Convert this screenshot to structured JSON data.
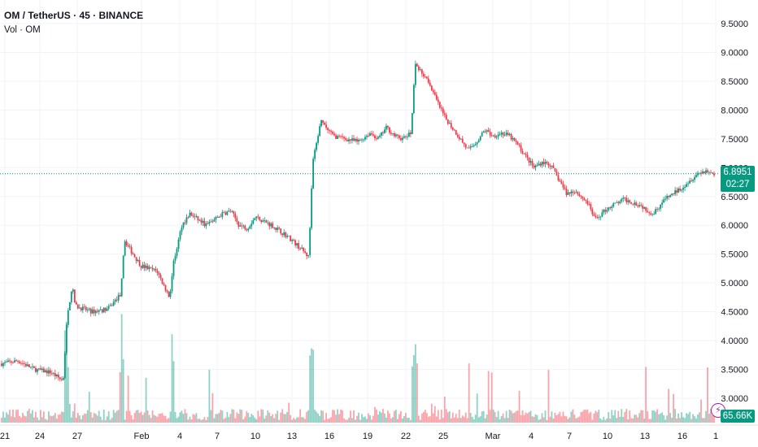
{
  "header": {
    "title": "OM / TetherUS · 45 · BINANCE",
    "volume_label": "Vol · OM"
  },
  "price_badge": {
    "price": "6.8951",
    "countdown": "02:27"
  },
  "volume_badge": {
    "value": "65.66K"
  },
  "colors": {
    "up": "#089981",
    "down": "#f23645",
    "grid": "#f0f3fa",
    "axis_text": "#131722",
    "alert_icon": "#9c27b0"
  },
  "icons": {
    "alert": "lightning-bolt-icon"
  },
  "chart_data": {
    "type": "candlestick",
    "title": "",
    "xlabel": "",
    "ylabel": "",
    "ylim": [
      2.8,
      9.6
    ],
    "grid": true,
    "current_price": 6.8951,
    "y_ticks": [
      "3.0000",
      "3.5000",
      "4.0000",
      "4.5000",
      "5.0000",
      "5.5000",
      "6.0000",
      "6.5000",
      "7.0000",
      "7.5000",
      "8.0000",
      "8.5000",
      "9.0000",
      "9.5000"
    ],
    "x_ticks": [
      "21",
      "24",
      "27",
      "Feb",
      "4",
      "7",
      "10",
      "13",
      "16",
      "19",
      "22",
      "25",
      "Mar",
      "4",
      "7",
      "10",
      "13",
      "16",
      "1"
    ],
    "price_path": [
      [
        0,
        3.6
      ],
      [
        2,
        3.65
      ],
      [
        4,
        3.5
      ],
      [
        6,
        3.45
      ],
      [
        7.5,
        3.3
      ],
      [
        8,
        4.4
      ],
      [
        8.6,
        4.95
      ],
      [
        9,
        4.6
      ],
      [
        11,
        4.5
      ],
      [
        13,
        4.55
      ],
      [
        14.5,
        4.8
      ],
      [
        15,
        5.75
      ],
      [
        15.6,
        5.6
      ],
      [
        17,
        5.3
      ],
      [
        19,
        5.2
      ],
      [
        20.5,
        4.75
      ],
      [
        21,
        5.35
      ],
      [
        22,
        6.0
      ],
      [
        23,
        6.2
      ],
      [
        25,
        6.0
      ],
      [
        27,
        6.2
      ],
      [
        28,
        6.25
      ],
      [
        29,
        6.0
      ],
      [
        30,
        5.95
      ],
      [
        31,
        6.15
      ],
      [
        33,
        6.0
      ],
      [
        35,
        5.8
      ],
      [
        36.5,
        5.6
      ],
      [
        37.5,
        5.45
      ],
      [
        38,
        7.1
      ],
      [
        39,
        7.8
      ],
      [
        40.5,
        7.55
      ],
      [
        42,
        7.5
      ],
      [
        43.5,
        7.45
      ],
      [
        45,
        7.6
      ],
      [
        46,
        7.5
      ],
      [
        47,
        7.7
      ],
      [
        48,
        7.55
      ],
      [
        49,
        7.5
      ],
      [
        50,
        7.6
      ],
      [
        50.5,
        8.85
      ],
      [
        51,
        8.7
      ],
      [
        52,
        8.55
      ],
      [
        53,
        8.2
      ],
      [
        54,
        7.9
      ],
      [
        55,
        7.7
      ],
      [
        56,
        7.5
      ],
      [
        57,
        7.3
      ],
      [
        58,
        7.45
      ],
      [
        59,
        7.65
      ],
      [
        60,
        7.55
      ],
      [
        61,
        7.6
      ],
      [
        62,
        7.55
      ],
      [
        63,
        7.4
      ],
      [
        64,
        7.2
      ],
      [
        65,
        7.0
      ],
      [
        66,
        7.1
      ],
      [
        67,
        7.05
      ],
      [
        68,
        6.8
      ],
      [
        69,
        6.55
      ],
      [
        70,
        6.6
      ],
      [
        71.5,
        6.4
      ],
      [
        72.5,
        6.1
      ],
      [
        74,
        6.3
      ],
      [
        76,
        6.45
      ],
      [
        78,
        6.35
      ],
      [
        79.5,
        6.2
      ],
      [
        81,
        6.45
      ],
      [
        83,
        6.65
      ],
      [
        85,
        6.9
      ],
      [
        86,
        6.95
      ],
      [
        87,
        6.89
      ]
    ]
  }
}
